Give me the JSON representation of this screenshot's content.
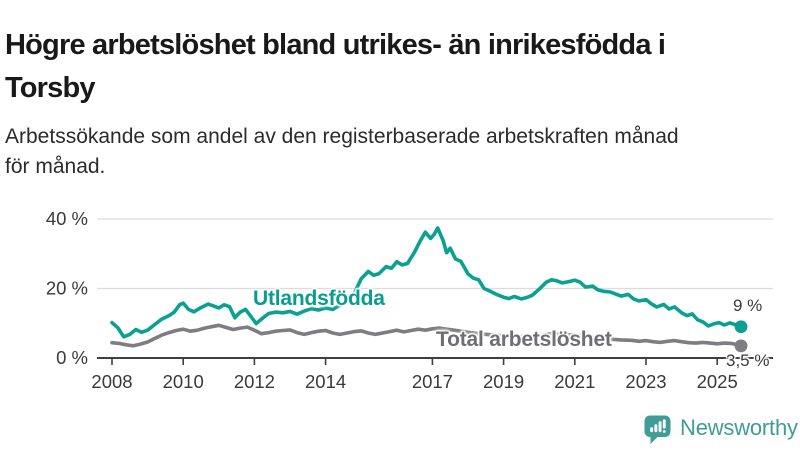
{
  "title": {
    "line1": "Högre arbetslöshet bland utrikes- än inrikesfödda i",
    "line2": "Torsby"
  },
  "subtitle": {
    "line1": "Arbetssökande som andel av den registerbaserade arbetskraften månad",
    "line2": "för månad."
  },
  "branding": {
    "wordmark": "Newsworthy",
    "icon": "newsworthy-chart-bubble-icon",
    "color": "#3f9d96"
  },
  "colors": {
    "foreign_born_line": "#0aa192",
    "total_line": "#7e7e82",
    "gridline": "#dcdcdc",
    "axis": "#3f3f3f",
    "axis_text": "#3a3a3a"
  },
  "chart_data": {
    "type": "line",
    "title": "Högre arbetslöshet bland utrikes- än inrikesfödda i Torsby",
    "subtitle": "Arbetssökande som andel av den registerbaserade arbetskraften månad för månad.",
    "unit": "%",
    "x_axis": {
      "range": [
        2007.6,
        2026.3
      ],
      "ticks": [
        2008,
        2010,
        2012,
        2014,
        2017,
        2019,
        2021,
        2023,
        2025
      ],
      "grid": false
    },
    "y_axis": {
      "range": [
        0,
        40
      ],
      "ticks": [
        {
          "value": 0,
          "label": "0 %"
        },
        {
          "value": 20,
          "label": "20 %"
        },
        {
          "value": 40,
          "label": "40 %"
        }
      ],
      "grid": true
    },
    "legend_position": "inline-labels-on-lines",
    "series": [
      {
        "name": "Utlandsfödda",
        "color": "#0aa192",
        "end_label": "9 %",
        "end_value": 9,
        "points": [
          [
            2008.0,
            10.2
          ],
          [
            2008.17,
            8.6
          ],
          [
            2008.33,
            6.1
          ],
          [
            2008.5,
            6.8
          ],
          [
            2008.67,
            8.2
          ],
          [
            2008.83,
            7.4
          ],
          [
            2009.0,
            8.0
          ],
          [
            2009.2,
            9.6
          ],
          [
            2009.4,
            11.2
          ],
          [
            2009.6,
            12.2
          ],
          [
            2009.75,
            13.2
          ],
          [
            2009.9,
            15.3
          ],
          [
            2010.0,
            15.8
          ],
          [
            2010.15,
            14.0
          ],
          [
            2010.3,
            13.3
          ],
          [
            2010.5,
            14.5
          ],
          [
            2010.7,
            15.5
          ],
          [
            2010.85,
            15.0
          ],
          [
            2011.0,
            14.4
          ],
          [
            2011.15,
            15.3
          ],
          [
            2011.3,
            14.8
          ],
          [
            2011.45,
            11.6
          ],
          [
            2011.6,
            13.2
          ],
          [
            2011.75,
            14.0
          ],
          [
            2011.9,
            12.0
          ],
          [
            2012.05,
            9.9
          ],
          [
            2012.2,
            11.2
          ],
          [
            2012.4,
            12.8
          ],
          [
            2012.6,
            13.2
          ],
          [
            2012.8,
            13.0
          ],
          [
            2013.0,
            13.4
          ],
          [
            2013.2,
            12.6
          ],
          [
            2013.4,
            13.5
          ],
          [
            2013.6,
            14.2
          ],
          [
            2013.8,
            13.8
          ],
          [
            2014.0,
            14.4
          ],
          [
            2014.2,
            14.0
          ],
          [
            2014.4,
            15.2
          ],
          [
            2014.6,
            16.0
          ],
          [
            2014.8,
            18.5
          ],
          [
            2015.0,
            22.8
          ],
          [
            2015.2,
            24.9
          ],
          [
            2015.35,
            23.8
          ],
          [
            2015.5,
            24.3
          ],
          [
            2015.7,
            26.3
          ],
          [
            2015.85,
            25.8
          ],
          [
            2016.0,
            27.7
          ],
          [
            2016.15,
            26.8
          ],
          [
            2016.3,
            27.2
          ],
          [
            2016.5,
            30.5
          ],
          [
            2016.65,
            33.5
          ],
          [
            2016.8,
            36.2
          ],
          [
            2016.95,
            34.4
          ],
          [
            2017.05,
            35.6
          ],
          [
            2017.15,
            37.4
          ],
          [
            2017.3,
            33.8
          ],
          [
            2017.4,
            30.3
          ],
          [
            2017.5,
            31.6
          ],
          [
            2017.65,
            28.5
          ],
          [
            2017.8,
            27.8
          ],
          [
            2018.0,
            24.2
          ],
          [
            2018.15,
            23.0
          ],
          [
            2018.3,
            22.5
          ],
          [
            2018.45,
            20.0
          ],
          [
            2018.6,
            19.3
          ],
          [
            2018.8,
            18.3
          ],
          [
            2019.0,
            17.5
          ],
          [
            2019.15,
            17.1
          ],
          [
            2019.3,
            17.7
          ],
          [
            2019.5,
            17.0
          ],
          [
            2019.65,
            17.4
          ],
          [
            2019.8,
            18.0
          ],
          [
            2020.0,
            19.8
          ],
          [
            2020.2,
            21.8
          ],
          [
            2020.35,
            22.5
          ],
          [
            2020.5,
            22.2
          ],
          [
            2020.65,
            21.6
          ],
          [
            2020.8,
            21.9
          ],
          [
            2021.0,
            22.4
          ],
          [
            2021.15,
            21.8
          ],
          [
            2021.3,
            20.4
          ],
          [
            2021.5,
            20.7
          ],
          [
            2021.65,
            19.6
          ],
          [
            2021.8,
            19.2
          ],
          [
            2022.0,
            19.0
          ],
          [
            2022.15,
            18.4
          ],
          [
            2022.3,
            17.8
          ],
          [
            2022.5,
            18.3
          ],
          [
            2022.65,
            17.0
          ],
          [
            2022.8,
            16.4
          ],
          [
            2023.0,
            16.8
          ],
          [
            2023.15,
            15.6
          ],
          [
            2023.3,
            14.7
          ],
          [
            2023.5,
            15.4
          ],
          [
            2023.65,
            14.1
          ],
          [
            2023.8,
            14.7
          ],
          [
            2024.0,
            13.0
          ],
          [
            2024.15,
            12.2
          ],
          [
            2024.3,
            12.7
          ],
          [
            2024.45,
            11.0
          ],
          [
            2024.6,
            10.4
          ],
          [
            2024.75,
            9.2
          ],
          [
            2024.9,
            9.8
          ],
          [
            2025.05,
            10.2
          ],
          [
            2025.2,
            9.5
          ],
          [
            2025.35,
            10.1
          ],
          [
            2025.5,
            9.6
          ],
          [
            2025.67,
            9.0
          ]
        ]
      },
      {
        "name": "Total arbetslöshet",
        "color": "#7e7e82",
        "end_label": "3,5 %",
        "end_value": 3.5,
        "points": [
          [
            2008.0,
            4.4
          ],
          [
            2008.2,
            4.2
          ],
          [
            2008.4,
            3.8
          ],
          [
            2008.6,
            3.5
          ],
          [
            2008.8,
            4.0
          ],
          [
            2009.0,
            4.6
          ],
          [
            2009.2,
            5.6
          ],
          [
            2009.4,
            6.6
          ],
          [
            2009.6,
            7.3
          ],
          [
            2009.8,
            7.9
          ],
          [
            2010.0,
            8.3
          ],
          [
            2010.2,
            7.7
          ],
          [
            2010.4,
            8.0
          ],
          [
            2010.6,
            8.6
          ],
          [
            2010.8,
            9.0
          ],
          [
            2011.0,
            9.4
          ],
          [
            2011.2,
            8.8
          ],
          [
            2011.4,
            8.2
          ],
          [
            2011.6,
            8.6
          ],
          [
            2011.8,
            8.9
          ],
          [
            2012.0,
            8.0
          ],
          [
            2012.2,
            7.0
          ],
          [
            2012.4,
            7.3
          ],
          [
            2012.6,
            7.7
          ],
          [
            2012.8,
            7.9
          ],
          [
            2013.0,
            8.1
          ],
          [
            2013.2,
            7.3
          ],
          [
            2013.4,
            6.8
          ],
          [
            2013.6,
            7.3
          ],
          [
            2013.8,
            7.7
          ],
          [
            2014.0,
            7.9
          ],
          [
            2014.2,
            7.2
          ],
          [
            2014.4,
            6.8
          ],
          [
            2014.6,
            7.2
          ],
          [
            2014.8,
            7.6
          ],
          [
            2015.0,
            7.8
          ],
          [
            2015.2,
            7.2
          ],
          [
            2015.4,
            6.8
          ],
          [
            2015.6,
            7.2
          ],
          [
            2015.8,
            7.6
          ],
          [
            2016.0,
            8.0
          ],
          [
            2016.2,
            7.5
          ],
          [
            2016.4,
            7.9
          ],
          [
            2016.6,
            8.3
          ],
          [
            2016.8,
            8.0
          ],
          [
            2017.0,
            8.4
          ],
          [
            2017.2,
            8.6
          ],
          [
            2017.4,
            8.3
          ],
          [
            2017.6,
            8.0
          ],
          [
            2017.8,
            7.7
          ],
          [
            2018.0,
            7.4
          ],
          [
            2018.3,
            7.0
          ],
          [
            2018.6,
            6.7
          ],
          [
            2019.0,
            6.4
          ],
          [
            2019.3,
            6.2
          ],
          [
            2019.6,
            6.1
          ],
          [
            2020.0,
            6.3
          ],
          [
            2020.3,
            7.0
          ],
          [
            2020.6,
            6.8
          ],
          [
            2021.0,
            6.6
          ],
          [
            2021.3,
            6.2
          ],
          [
            2021.6,
            5.8
          ],
          [
            2022.0,
            5.4
          ],
          [
            2022.3,
            5.2
          ],
          [
            2022.6,
            5.1
          ],
          [
            2022.8,
            4.8
          ],
          [
            2023.0,
            5.0
          ],
          [
            2023.2,
            4.7
          ],
          [
            2023.4,
            4.5
          ],
          [
            2023.6,
            4.8
          ],
          [
            2023.8,
            5.0
          ],
          [
            2024.0,
            4.7
          ],
          [
            2024.2,
            4.4
          ],
          [
            2024.4,
            4.3
          ],
          [
            2024.6,
            4.5
          ],
          [
            2024.8,
            4.3
          ],
          [
            2025.0,
            4.1
          ],
          [
            2025.2,
            4.3
          ],
          [
            2025.4,
            4.2
          ],
          [
            2025.67,
            3.5
          ]
        ]
      }
    ]
  }
}
